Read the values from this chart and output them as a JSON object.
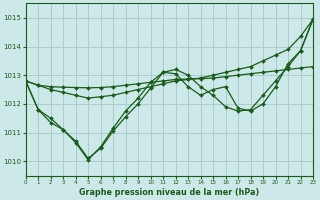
{
  "bg_color": "#cce8e8",
  "grid_color": "#aacccc",
  "line_color": "#1a5c1a",
  "title": "Graphe pression niveau de la mer (hPa)",
  "xlim": [
    0,
    23
  ],
  "ylim": [
    1009.5,
    1015.5
  ],
  "yticks": [
    1010,
    1011,
    1012,
    1013,
    1014,
    1015
  ],
  "xticks": [
    0,
    1,
    2,
    3,
    4,
    5,
    6,
    7,
    8,
    9,
    10,
    11,
    12,
    13,
    14,
    15,
    16,
    17,
    18,
    19,
    20,
    21,
    22,
    23
  ],
  "series": [
    {
      "x": [
        0,
        1,
        2,
        3,
        4,
        5,
        6,
        7,
        8,
        9,
        10,
        11,
        12,
        13,
        14,
        15,
        16,
        17,
        18,
        19,
        20,
        21,
        22,
        23
      ],
      "y": [
        1012.8,
        1012.65,
        1012.6,
        1012.58,
        1012.57,
        1012.56,
        1012.57,
        1012.6,
        1012.65,
        1012.7,
        1012.75,
        1012.8,
        1012.85,
        1012.87,
        1012.88,
        1012.9,
        1012.95,
        1013.0,
        1013.05,
        1013.1,
        1013.15,
        1013.2,
        1013.25,
        1013.3
      ]
    },
    {
      "x": [
        0,
        1,
        2,
        3,
        4,
        5,
        6,
        7,
        8,
        9,
        10,
        11,
        12,
        13,
        14,
        15,
        16,
        17,
        18,
        19,
        20,
        21,
        22,
        23
      ],
      "y": [
        1012.8,
        1012.65,
        1012.5,
        1012.4,
        1012.3,
        1012.2,
        1012.25,
        1012.3,
        1012.4,
        1012.5,
        1012.6,
        1012.7,
        1012.8,
        1012.85,
        1012.9,
        1013.0,
        1013.1,
        1013.2,
        1013.3,
        1013.5,
        1013.7,
        1013.9,
        1014.35,
        1014.95
      ]
    },
    {
      "x": [
        0,
        1,
        2,
        3,
        4,
        5,
        6,
        7,
        8,
        9,
        10,
        11,
        12,
        13,
        14,
        15,
        16,
        17,
        18,
        19,
        20,
        21,
        22,
        23
      ],
      "y": [
        1012.8,
        1011.8,
        1011.5,
        1011.1,
        1010.7,
        1010.1,
        1010.45,
        1011.05,
        1011.55,
        1012.0,
        1012.55,
        1013.1,
        1013.2,
        1013.0,
        1012.6,
        1012.3,
        1011.9,
        1011.75,
        1011.8,
        1012.3,
        1012.8,
        1013.3,
        1013.85,
        1014.95
      ]
    },
    {
      "x": [
        0,
        1,
        2,
        3,
        4,
        5,
        6,
        7,
        8,
        9,
        10,
        11,
        12,
        13,
        14,
        15,
        16,
        17,
        18,
        19,
        20,
        21,
        22,
        23
      ],
      "y": [
        1012.8,
        1011.8,
        1011.35,
        1011.1,
        1010.65,
        1010.05,
        1010.5,
        1011.15,
        1011.75,
        1012.2,
        1012.75,
        1013.1,
        1013.05,
        1012.6,
        1012.3,
        1012.5,
        1012.6,
        1011.85,
        1011.75,
        1012.0,
        1012.6,
        1013.4,
        1013.85,
        1014.95
      ]
    }
  ]
}
